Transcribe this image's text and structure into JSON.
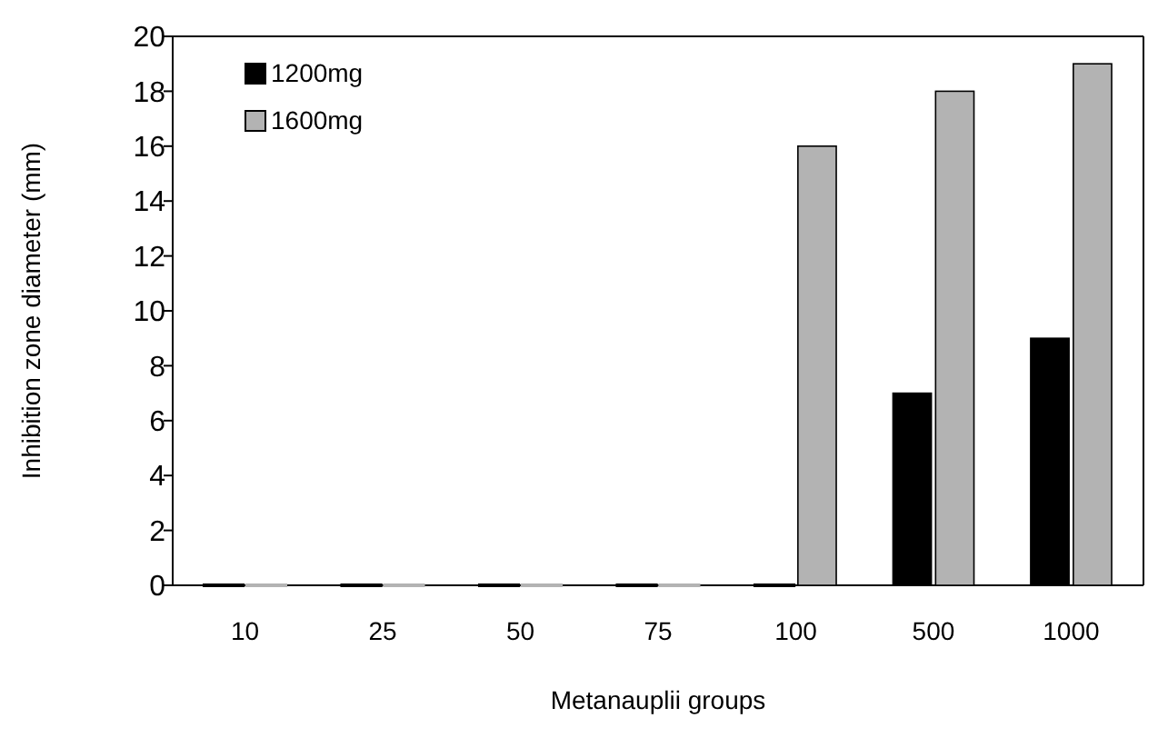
{
  "chart_data": {
    "type": "bar",
    "xlabel": "Metanauplii groups",
    "ylabel": "Inhibition zone diameter (mm)",
    "categories": [
      "10",
      "25",
      "50",
      "75",
      "100",
      "500",
      "1000"
    ],
    "series": [
      {
        "name": "1200mg",
        "color": "#000000",
        "values": [
          0,
          0,
          0,
          0,
          0,
          7,
          9
        ]
      },
      {
        "name": "1600mg",
        "color": "#b3b3b3",
        "values": [
          0,
          0,
          0,
          0,
          16,
          18,
          19
        ]
      }
    ],
    "ylim": [
      0,
      20
    ],
    "yticks": [
      0,
      2,
      4,
      6,
      8,
      10,
      12,
      14,
      16,
      18,
      20
    ],
    "grid": false,
    "legend": "top left"
  }
}
